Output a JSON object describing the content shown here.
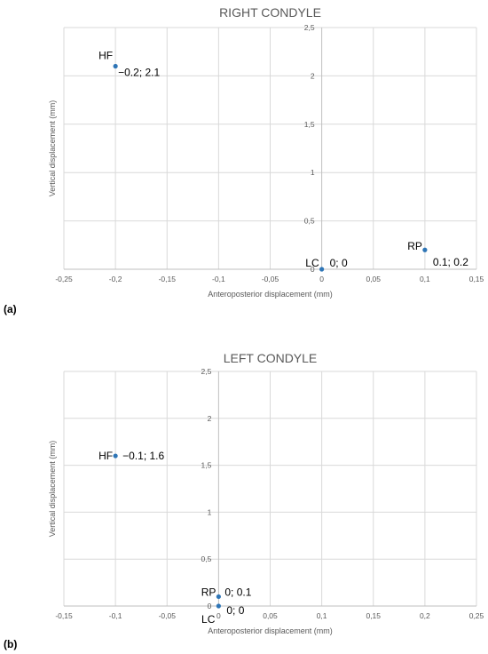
{
  "chart_data": [
    {
      "type": "scatter",
      "title": "RIGHT CONDYLE",
      "panel_label": "(a)",
      "xlabel": "Anteroposterior displacement (mm)",
      "ylabel": "Vertical displacement (mm)",
      "xlim": [
        -0.25,
        0.15
      ],
      "ylim": [
        0,
        2.5
      ],
      "x_ticks": [
        -0.25,
        -0.2,
        -0.15,
        -0.1,
        -0.05,
        0,
        0.05,
        0.1,
        0.15
      ],
      "x_tick_labels": [
        "-0,25",
        "-0,2",
        "-0,15",
        "-0,1",
        "-0,05",
        "0",
        "0,05",
        "0,1",
        "0,15"
      ],
      "y_ticks": [
        0,
        0.5,
        1,
        1.5,
        2,
        2.5
      ],
      "y_tick_labels": [
        "0",
        "0,5",
        "1",
        "1,5",
        "2",
        "2,5"
      ],
      "grid": true,
      "color": "#2e75b6",
      "points": [
        {
          "name": "HF",
          "x": -0.2,
          "y": 2.1,
          "value_label": "−0.2; 2.1"
        },
        {
          "name": "RP",
          "x": 0.1,
          "y": 0.2,
          "value_label": "0.1; 0.2"
        },
        {
          "name": "LC",
          "x": 0,
          "y": 0,
          "value_label": "0; 0"
        }
      ]
    },
    {
      "type": "scatter",
      "title": "LEFT CONDYLE",
      "panel_label": "(b)",
      "xlabel": "Anteroposterior displacement (mm)",
      "ylabel": "Vertical displacement (mm)",
      "xlim": [
        -0.15,
        0.25
      ],
      "ylim": [
        0,
        2.5
      ],
      "x_ticks": [
        -0.15,
        -0.1,
        -0.05,
        0,
        0.05,
        0.1,
        0.15,
        0.2,
        0.25
      ],
      "x_tick_labels": [
        "-0,15",
        "-0,1",
        "-0,05",
        "0",
        "0,05",
        "0,1",
        "0,15",
        "0,2",
        "0,25"
      ],
      "y_ticks": [
        0,
        0.5,
        1,
        1.5,
        2,
        2.5
      ],
      "y_tick_labels": [
        "0",
        "0,5",
        "1",
        "1,5",
        "2",
        "2,5"
      ],
      "grid": true,
      "color": "#2e75b6",
      "points": [
        {
          "name": "HF",
          "x": -0.1,
          "y": 1.6,
          "value_label": "−0.1; 1.6"
        },
        {
          "name": "RP",
          "x": 0,
          "y": 0.1,
          "value_label": "0; 0.1"
        },
        {
          "name": "LC",
          "x": 0,
          "y": 0,
          "value_label": "0; 0"
        }
      ]
    }
  ]
}
